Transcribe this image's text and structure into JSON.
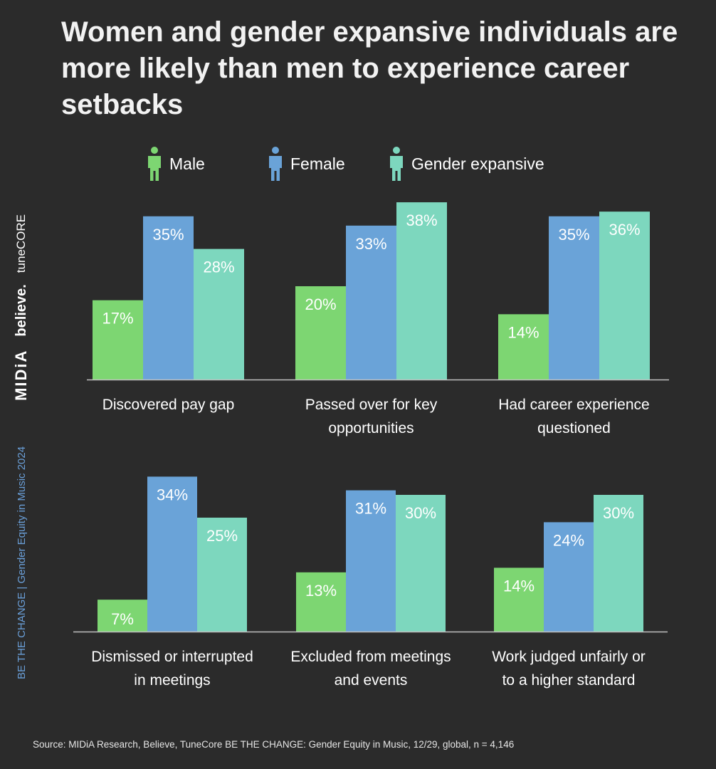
{
  "title": "Women and gender expansive individuals are more likely than men to experience career setbacks",
  "colors": {
    "background": "#2b2b2b",
    "male": "#7dd672",
    "female": "#6aa3d8",
    "gender_expansive": "#7dd7be",
    "sidebar_accent": "#6a9fd8"
  },
  "legend": {
    "male": "Male",
    "female": "Female",
    "gender_expansive": "Gender expansive",
    "icon": "person-icon"
  },
  "sidebar": {
    "tagline": "BE THE CHANGE | Gender Equity in Music 2024",
    "brand_midia": "MIDiA",
    "brand_believe": "believe.",
    "brand_tunecore": "tuneCORE"
  },
  "source": "Source: MIDiA Research, Believe, TuneCore BE THE CHANGE: Gender Equity in Music, 12/29, global, n = 4,146",
  "chart_data": [
    {
      "type": "bar",
      "categories": [
        [
          "Discovered pay gap"
        ],
        [
          "Passed over for key",
          "opportunities"
        ],
        [
          "Had career experience",
          "questioned"
        ]
      ],
      "series": [
        {
          "name": "Male",
          "values": [
            17,
            20,
            14
          ]
        },
        {
          "name": "Female",
          "values": [
            35,
            33,
            35
          ]
        },
        {
          "name": "Gender expansive",
          "values": [
            28,
            38,
            36
          ]
        }
      ],
      "value_suffix": "%",
      "legend_position": "top",
      "grid": false
    },
    {
      "type": "bar",
      "categories": [
        [
          "Dismissed or interrupted",
          "in meetings"
        ],
        [
          "Excluded from meetings",
          "and events"
        ],
        [
          "Work judged unfairly or",
          "to a higher standard"
        ]
      ],
      "series": [
        {
          "name": "Male",
          "values": [
            7,
            13,
            14
          ]
        },
        {
          "name": "Female",
          "values": [
            34,
            31,
            24
          ]
        },
        {
          "name": "Gender expansive",
          "values": [
            25,
            30,
            30
          ]
        }
      ],
      "value_suffix": "%",
      "legend_position": "top",
      "grid": false
    }
  ]
}
